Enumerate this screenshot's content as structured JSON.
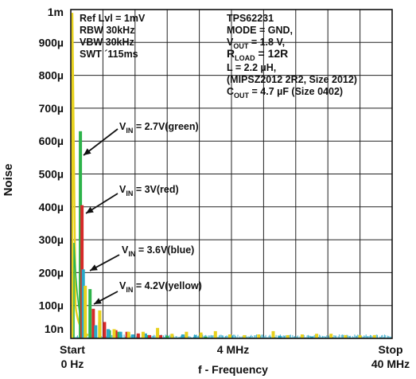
{
  "chart_data": {
    "type": "bar",
    "title": "",
    "xlabel": "f - Frequency",
    "ylabel": "Noise",
    "x_unit_ticks": {
      "start": [
        "Start",
        "0 Hz"
      ],
      "mid": "4 MHz",
      "stop": [
        "Stop",
        "40 MHz"
      ]
    },
    "xlim_hz": [
      0,
      40000000
    ],
    "ylim_v": [
      0,
      0.001
    ],
    "grid": true,
    "y_tick_labels": [
      "1m",
      "900µ",
      "800µ",
      "700µ",
      "600µ",
      "500µ",
      "400µ",
      "300µ",
      "200µ",
      "100µ",
      "10n"
    ],
    "y_tick_values_v": [
      0.001,
      0.0009,
      0.0008,
      0.0007,
      0.0006,
      0.0005,
      0.0004,
      0.0003,
      0.0002,
      0.0001,
      0
    ],
    "analyzer_settings": [
      "Ref Lvl = 1mV",
      "RBW 30kHz",
      "VBW 30kHz",
      "SWT ´115ms"
    ],
    "conditions": [
      "TPS62231",
      "MODE = GND,",
      {
        "pre": "V",
        "sub": "OUT",
        "post": " = 1.8 V,"
      },
      {
        "pre": "R",
        "sub": "LOAD",
        "post": " = 12R"
      },
      "L = 2.2 µH,",
      "(MIPSZ2012 2R2, Size 2012)",
      {
        "pre": "C",
        "sub": "OUT",
        "post": " = 4.7 µF (Size 0402)"
      }
    ],
    "dc_spike_v": 0.00099,
    "series": [
      {
        "name": "green",
        "color": "#2db34a",
        "annotation": {
          "pre": "V",
          "sub": "IN",
          "post": " = 2.7V(green)"
        },
        "peaks_hz": [
          1200000,
          2400000,
          3600000,
          4800000,
          6000000,
          7200000,
          8400000,
          9600000,
          12000000,
          14400000,
          16800000
        ],
        "peaks_v": [
          0.00063,
          0.00015,
          5e-05,
          2.5e-05,
          2e-05,
          1.5e-05,
          1.2e-05,
          1e-05,
          8e-06,
          6e-06,
          5e-06
        ]
      },
      {
        "name": "red",
        "color": "#d62a2a",
        "annotation": {
          "pre": "V",
          "sub": "IN",
          "post": " = 3V(red)"
        },
        "peaks_hz": [
          1400000,
          2800000,
          4200000,
          5600000,
          7000000,
          8400000,
          9800000,
          11200000,
          14000000
        ],
        "peaks_v": [
          0.000405,
          9e-05,
          5e-05,
          2.5e-05,
          2e-05,
          1.5e-05,
          1e-05,
          1e-05,
          6e-06
        ]
      },
      {
        "name": "blue",
        "color": "#2aa8c8",
        "annotation": {
          "pre": "V",
          "sub": "IN",
          "post": " = 3.6V(blue)"
        },
        "peaks_hz": [
          1550000,
          3100000,
          4650000,
          6200000,
          7750000,
          9300000,
          13950000,
          15500000,
          20000000,
          26000000,
          30000000,
          36000000
        ],
        "peaks_v": [
          0.00021,
          4e-05,
          2.8e-05,
          2e-05,
          1.2e-05,
          1.5e-05,
          1.2e-05,
          1e-05,
          8e-06,
          8e-06,
          6e-06,
          6e-06
        ]
      },
      {
        "name": "yellow",
        "color": "#e8d21e",
        "annotation": {
          "pre": "V",
          "sub": "IN",
          "post": " = 4.2V(yellow)"
        },
        "peaks_hz": [
          1800000,
          3600000,
          5400000,
          7200000,
          9000000,
          10800000,
          12600000,
          14400000,
          16200000,
          18000000,
          19800000,
          21600000,
          23400000,
          25200000,
          27000000,
          28800000,
          30600000,
          32400000,
          34200000,
          36000000,
          37800000
        ],
        "peaks_v": [
          0.00016,
          8.5e-05,
          2.8e-05,
          2e-05,
          2e-05,
          3.2e-05,
          1.4e-05,
          2e-05,
          1.8e-05,
          2.2e-05,
          1.2e-05,
          1e-05,
          1.2e-05,
          2.2e-05,
          1e-05,
          1.2e-05,
          1.4e-05,
          1.4e-05,
          1e-05,
          1e-05,
          1e-05
        ]
      }
    ]
  }
}
